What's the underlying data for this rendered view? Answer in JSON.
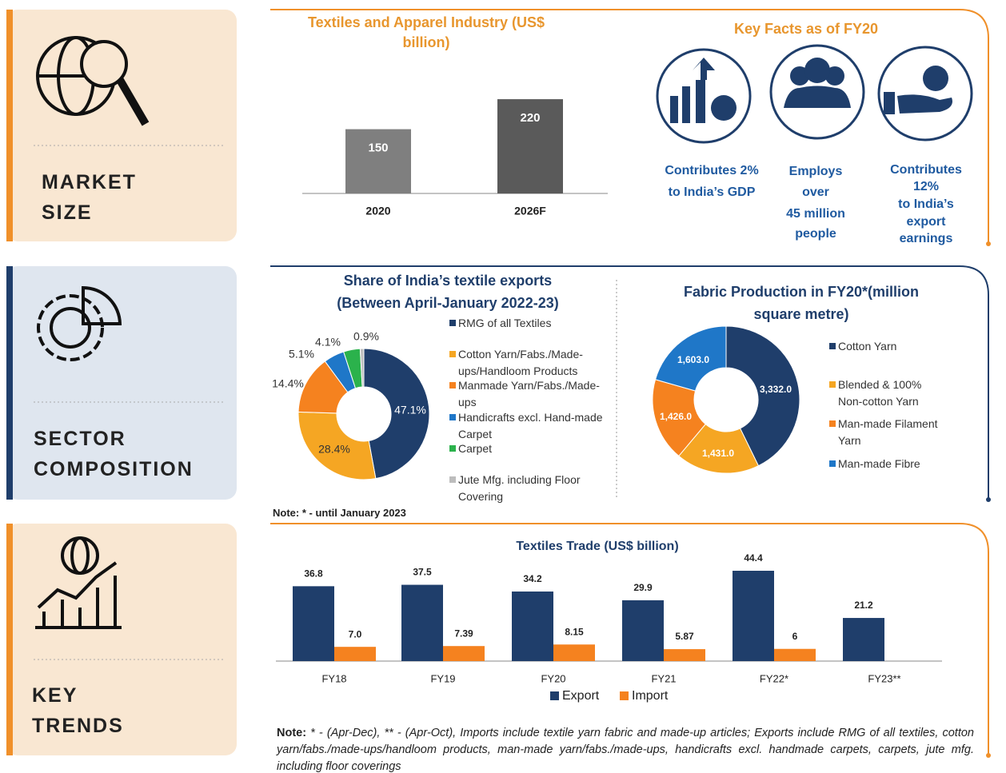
{
  "sections": [
    {
      "lines": [
        "MARKET",
        "SIZE"
      ]
    },
    {
      "lines": [
        "SECTOR",
        "COMPOSITION"
      ]
    },
    {
      "lines": [
        "KEY",
        "TRENDS"
      ]
    }
  ],
  "key_facts": {
    "title": "Key Facts as of FY20",
    "items": [
      {
        "lines": [
          "Contributes 2%",
          "to India’s GDP"
        ]
      },
      {
        "lines": [
          "Employs",
          "over",
          "45 million",
          "people"
        ]
      },
      {
        "lines": [
          "Contributes",
          "12%",
          "to India’s",
          "export",
          "earnings"
        ]
      }
    ]
  },
  "chart_data": [
    {
      "type": "bar",
      "title": "Textiles and Apparel Industry (US$ billion)",
      "categories": [
        "2020",
        "2026F"
      ],
      "values": [
        150,
        220
      ],
      "colors": [
        "#7f7f7f",
        "#5a5a5a"
      ]
    },
    {
      "type": "pie",
      "donut": true,
      "title": "Share of India’s textile exports",
      "subtitle": "(Between April-January 2022-23)",
      "categories": [
        "RMG of all Textiles",
        "Cotton Yarn/Fabs./Made-ups/Handloom Products",
        "Manmade Yarn/Fabs./Made-ups",
        "Handicrafts excl. Hand-made Carpet",
        "Carpet",
        "Jute Mfg. including Floor Covering"
      ],
      "values": [
        47.1,
        28.4,
        14.4,
        5.1,
        4.1,
        0.9
      ],
      "value_labels": [
        "47.1%",
        "28.4%",
        "14.4%",
        "5.1%",
        "4.1%",
        "0.9%"
      ],
      "colors": [
        "#1f3e6b",
        "#f5a623",
        "#f5821f",
        "#1f77c8",
        "#2bb24c",
        "#bdbdbd"
      ]
    },
    {
      "type": "pie",
      "donut": true,
      "title": "Fabric Production in FY20*(million square metre)",
      "categories": [
        "Cotton Yarn",
        "Blended & 100% Non-cotton Yarn",
        "Man-made Filament Yarn",
        "Man-made Fibre"
      ],
      "values": [
        3332.0,
        1431.0,
        1426.0,
        1603.0
      ],
      "value_labels": [
        "3,332.0",
        "1,431.0",
        "1,426.0",
        "1,603.0"
      ],
      "colors": [
        "#1f3e6b",
        "#f5a623",
        "#f5821f",
        "#1f77c8"
      ]
    },
    {
      "type": "bar",
      "title": "Textiles Trade (US$ billion)",
      "categories": [
        "FY18",
        "FY19",
        "FY20",
        "FY21",
        "FY22*",
        "FY23**"
      ],
      "series": [
        {
          "name": "Export",
          "color": "#1f3e6b",
          "values": [
            36.8,
            37.5,
            34.2,
            29.9,
            44.4,
            21.2
          ]
        },
        {
          "name": "Import",
          "color": "#f5821f",
          "values": [
            7.0,
            7.39,
            8.15,
            5.87,
            6,
            null
          ],
          "value_labels": [
            "7.0",
            "7.39",
            "8.15",
            "5.87",
            "6",
            null
          ]
        }
      ]
    }
  ],
  "notes": {
    "composition": "Note: * - until January 2023",
    "trade_label": "Note:",
    "trade": " * - (Apr-Dec), ** - (Apr-Oct), Imports include textile yarn fabric and made-up articles; Exports include RMG of all textiles, cotton yarn/fabs./made-ups/handloom products, man-made yarn/fabs./made-ups, handicrafts excl. handmade carpets, carpets, jute mfg. including floor coverings"
  }
}
